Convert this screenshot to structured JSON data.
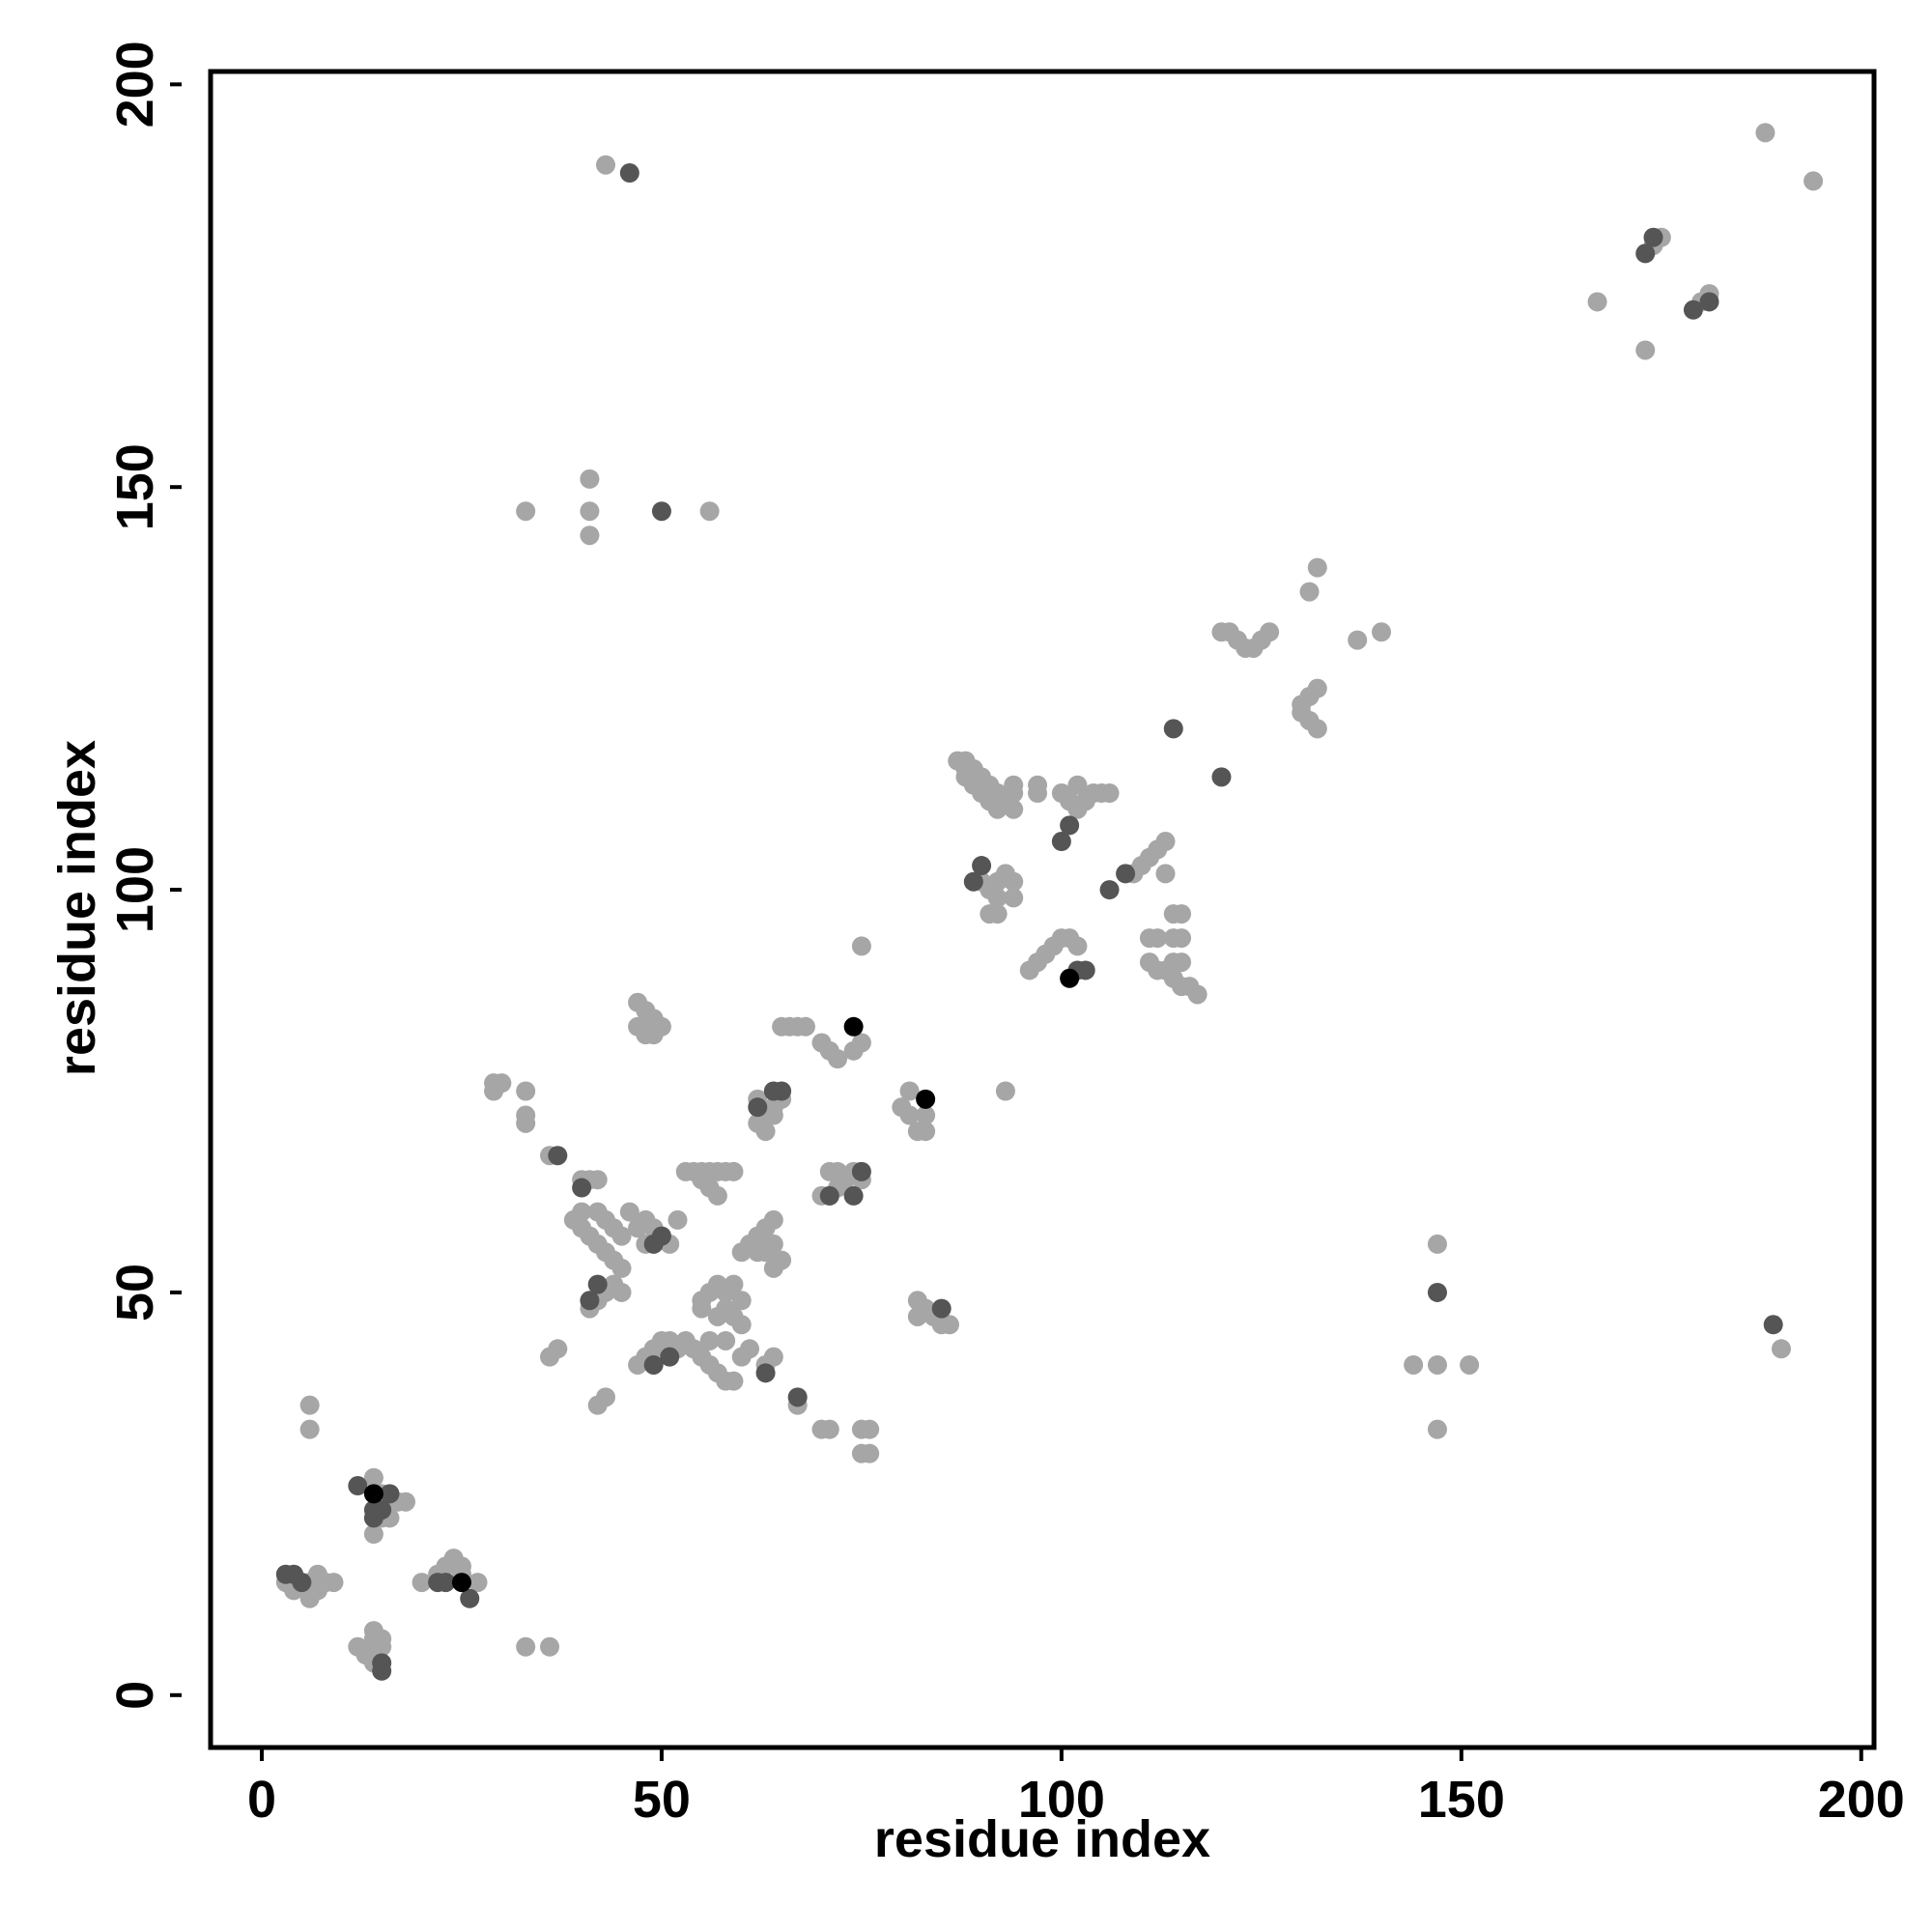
{
  "chart_data": {
    "type": "scatter",
    "xlabel": "residue index",
    "ylabel": "residue index",
    "xlim": [
      -6.4,
      201.6
    ],
    "ylim": [
      -6.5,
      201.6
    ],
    "xticks": [
      0,
      50,
      100,
      150,
      200
    ],
    "yticks": [
      0,
      50,
      100,
      150,
      200
    ],
    "series": [
      {
        "color": "#a6a6a6",
        "x": [
          188,
          194,
          167,
          173,
          175,
          174,
          181,
          180,
          43,
          33,
          41,
          41,
          41,
          56,
          132,
          131,
          140,
          137,
          120,
          121,
          122,
          123,
          124,
          125,
          126,
          130,
          131,
          132,
          130,
          131,
          132,
          87,
          88,
          88,
          89,
          90,
          91,
          92,
          93,
          88,
          89,
          90,
          91,
          92,
          94,
          94,
          97,
          97,
          94,
          100,
          101,
          102,
          103,
          104,
          105,
          106,
          102,
          109,
          110,
          111,
          112,
          113,
          113,
          90,
          91,
          92,
          92,
          93,
          94,
          94,
          91,
          92,
          100,
          101,
          102,
          99,
          98,
          97,
          96,
          111,
          112,
          114,
          115,
          114,
          115,
          111,
          112,
          113,
          114,
          115,
          116,
          117,
          114,
          115,
          75,
          93,
          65,
          66,
          67,
          68,
          70,
          71,
          72,
          74,
          75,
          47,
          48,
          49,
          47,
          48,
          49,
          50,
          81,
          80,
          81,
          82,
          83,
          83,
          29,
          30,
          29,
          33,
          33,
          33,
          62,
          63,
          64,
          65,
          62,
          63,
          64,
          36,
          40,
          41,
          42,
          53,
          54,
          55,
          56,
          57,
          55,
          56,
          57,
          58,
          59,
          70,
          71,
          72,
          73,
          74,
          71,
          72,
          75,
          39,
          40,
          41,
          42,
          43,
          44,
          45,
          40,
          42,
          43,
          44,
          45,
          46,
          48,
          49,
          50,
          51,
          52,
          47,
          48,
          44,
          43,
          42,
          41,
          45,
          60,
          61,
          62,
          63,
          64,
          64,
          65,
          64,
          63,
          62,
          55,
          56,
          57,
          58,
          59,
          60,
          58,
          59,
          60,
          55,
          57,
          47,
          48,
          49,
          50,
          51,
          52,
          53,
          54,
          55,
          56,
          57,
          58,
          59,
          60,
          61,
          58,
          56,
          63,
          64,
          36,
          37,
          82,
          83,
          84,
          85,
          86,
          82,
          42,
          43,
          67,
          70,
          71,
          75,
          76,
          75,
          76,
          6,
          6,
          14,
          15,
          16,
          17,
          18,
          15,
          16,
          14,
          20,
          22,
          23,
          24,
          25,
          25,
          27,
          3,
          4,
          5,
          6,
          6,
          7,
          8,
          9,
          7,
          12,
          13,
          14,
          14,
          15,
          15,
          14,
          33,
          36,
          144,
          147,
          151,
          147,
          147,
          190
        ],
        "values": [
          194,
          188,
          173,
          167,
          181,
          180,
          174,
          173,
          190,
          147,
          151,
          147,
          144,
          147,
          140,
          137,
          132,
          131,
          132,
          132,
          131,
          130,
          130,
          131,
          132,
          123,
          124,
          125,
          122,
          121,
          120,
          116,
          116,
          115,
          115,
          114,
          113,
          112,
          111,
          114,
          113,
          112,
          111,
          110,
          113,
          112,
          113,
          112,
          110,
          112,
          111,
          110,
          111,
          112,
          112,
          112,
          113,
          102,
          103,
          104,
          105,
          106,
          102,
          101,
          100,
          99,
          101,
          102,
          101,
          99,
          97,
          97,
          94,
          94,
          93,
          93,
          92,
          91,
          90,
          94,
          94,
          94,
          94,
          97,
          97,
          91,
          90,
          90,
          89,
          88,
          88,
          87,
          91,
          91,
          93,
          75,
          83,
          83,
          83,
          83,
          81,
          80,
          79,
          80,
          81,
          86,
          85,
          84,
          83,
          82,
          82,
          83,
          75,
          73,
          72,
          70,
          70,
          72,
          76,
          76,
          75,
          75,
          72,
          71,
          71,
          72,
          73,
          74,
          74,
          70,
          72,
          67,
          64,
          64,
          64,
          65,
          65,
          64,
          63,
          62,
          65,
          65,
          65,
          65,
          65,
          62,
          62,
          63,
          64,
          65,
          65,
          65,
          64,
          59,
          58,
          57,
          56,
          55,
          54,
          53,
          60,
          60,
          59,
          58,
          57,
          60,
          59,
          58,
          57,
          56,
          59,
          58,
          56,
          51,
          50,
          49,
          48,
          50,
          55,
          56,
          57,
          58,
          59,
          56,
          54,
          53,
          55,
          55,
          49,
          50,
          51,
          50,
          51,
          49,
          48,
          47,
          46,
          48,
          47,
          41,
          42,
          43,
          44,
          44,
          43,
          44,
          43,
          42,
          41,
          40,
          39,
          39,
          42,
          43,
          44,
          44,
          41,
          42,
          42,
          43,
          49,
          48,
          47,
          46,
          46,
          47,
          36,
          37,
          36,
          33,
          33,
          33,
          33,
          30,
          30,
          36,
          33,
          27,
          25,
          24,
          24,
          24,
          22,
          22,
          20,
          14,
          15,
          16,
          17,
          16,
          15,
          14,
          14,
          13,
          14,
          14,
          12,
          13,
          14,
          14,
          15,
          6,
          5,
          4,
          7,
          6,
          7,
          8,
          6,
          6,
          41,
          41,
          41,
          33,
          56,
          43
        ]
      },
      {
        "color": "#555555",
        "x": [
          173,
          174,
          179,
          181,
          46,
          50,
          114,
          120,
          101,
          100,
          106,
          108,
          89,
          90,
          102,
          103,
          62,
          64,
          65,
          37,
          40,
          71,
          74,
          75,
          41,
          42,
          49,
          50,
          49,
          51,
          63,
          85,
          67,
          12,
          14,
          14,
          15,
          16,
          22,
          23,
          26,
          3,
          4,
          5,
          15,
          15,
          147,
          189
        ],
        "values": [
          179,
          181,
          172,
          173,
          189,
          147,
          120,
          114,
          108,
          106,
          100,
          102,
          101,
          103,
          90,
          90,
          73,
          75,
          75,
          67,
          63,
          62,
          62,
          65,
          49,
          51,
          56,
          57,
          41,
          42,
          40,
          48,
          37,
          26,
          23,
          22,
          23,
          25,
          14,
          14,
          12,
          15,
          15,
          14,
          3,
          4,
          50,
          46
        ]
      },
      {
        "color": "#000000",
        "x": [
          74,
          83,
          14,
          25,
          101
        ],
        "values": [
          83,
          74,
          25,
          14,
          89
        ]
      }
    ]
  }
}
